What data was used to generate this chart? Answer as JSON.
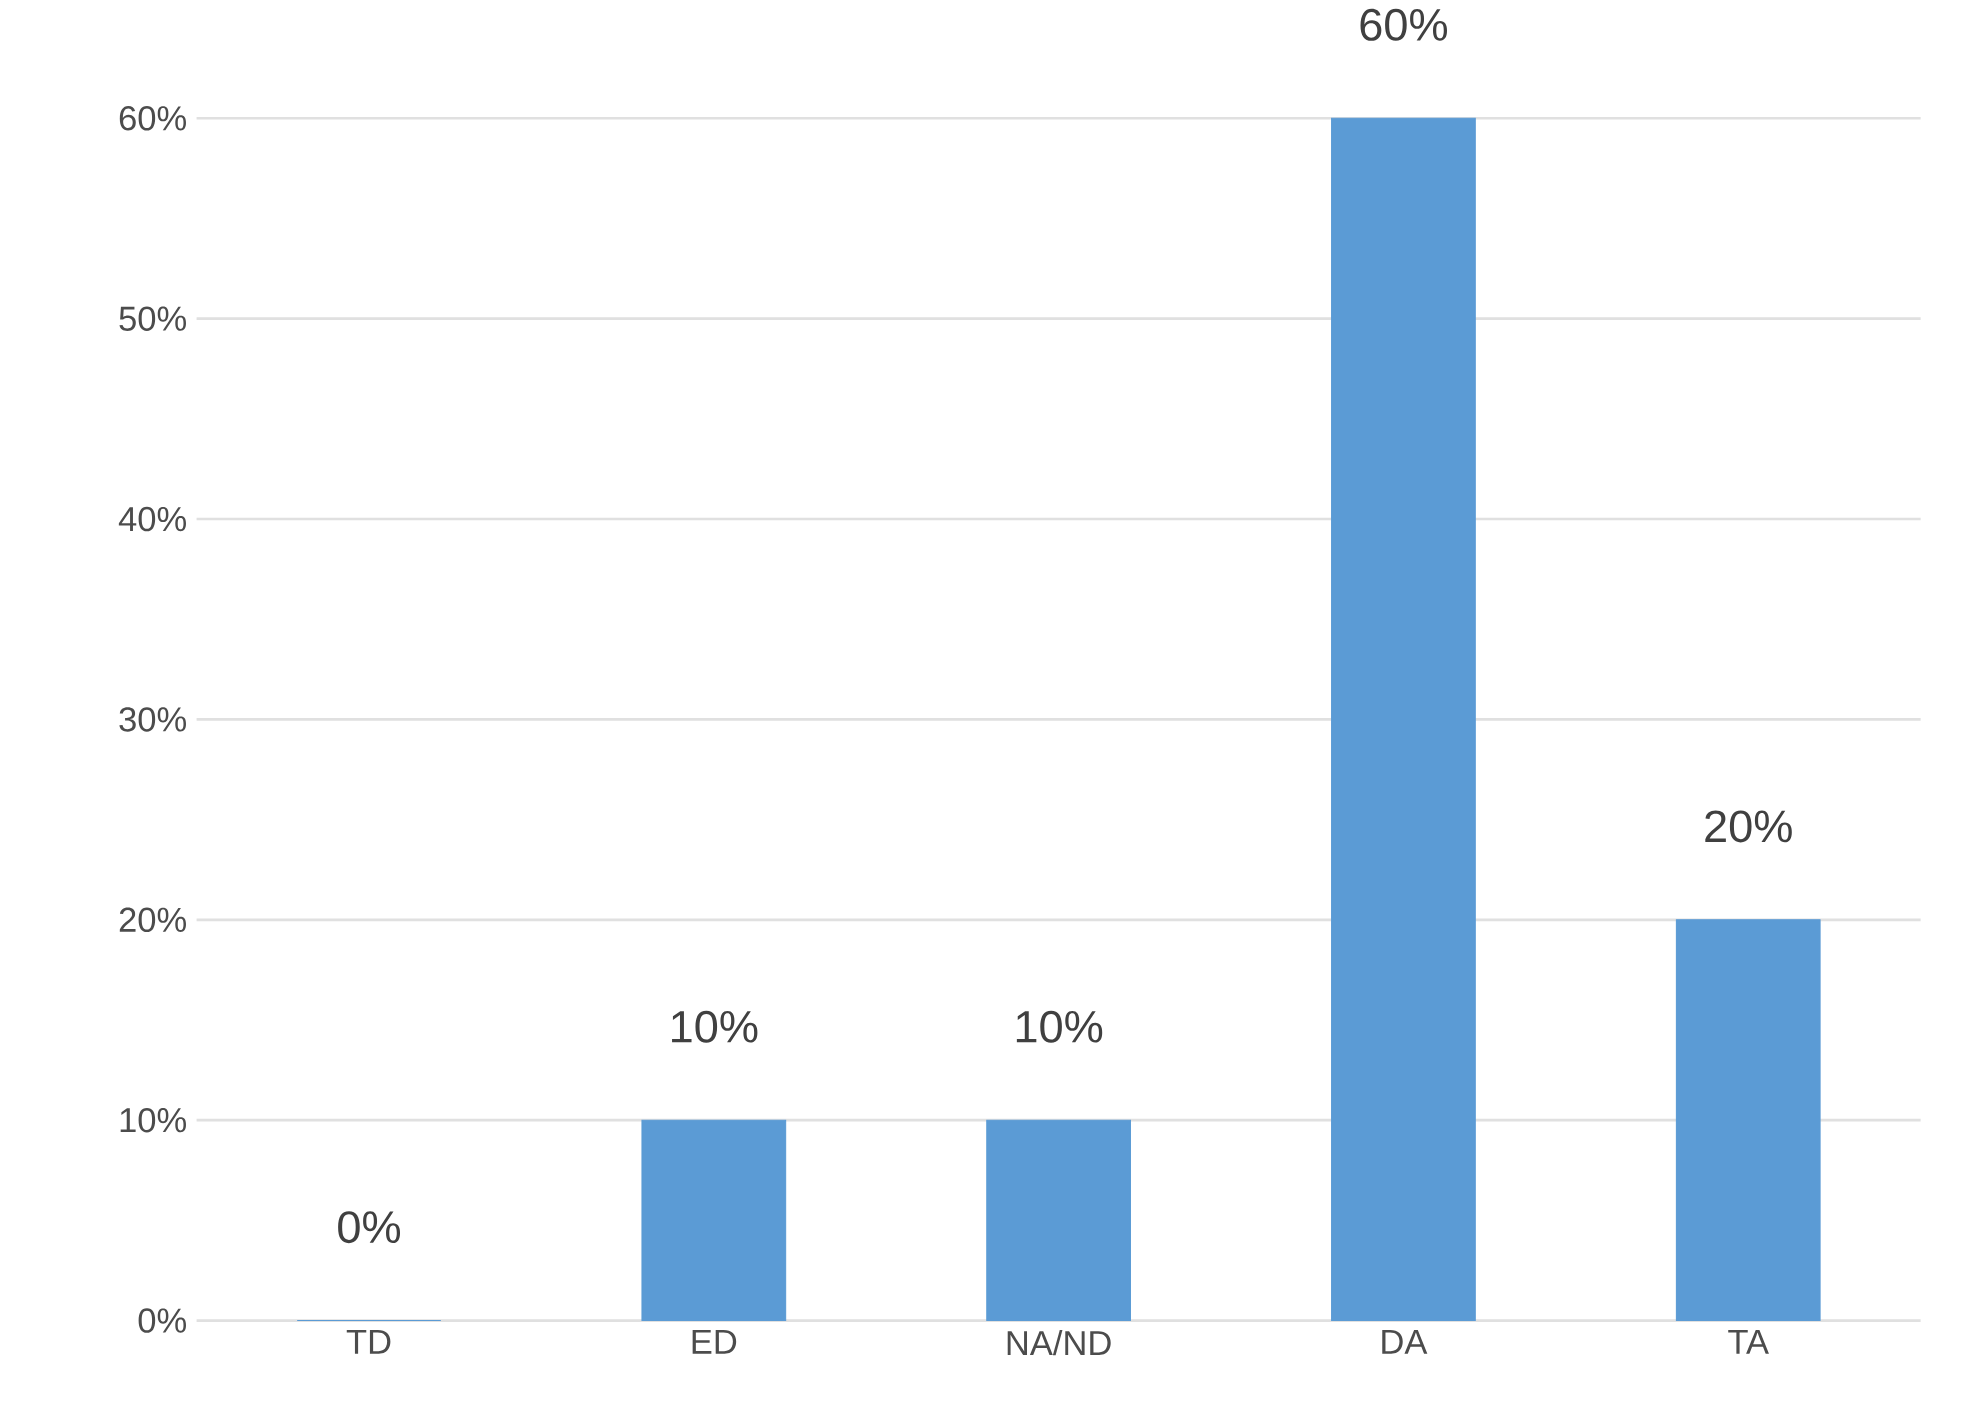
{
  "chart_data": {
    "type": "bar",
    "categories": [
      "TD",
      "ED",
      "NA/ND",
      "DA",
      "TA"
    ],
    "values": [
      0,
      10,
      10,
      60,
      20
    ],
    "value_labels": [
      "0%",
      "10%",
      "10%",
      "60%",
      "20%"
    ],
    "color": "#5b9bd5",
    "ylim": [
      0,
      60
    ],
    "yticks": [
      {
        "value": 0,
        "label": "0%"
      },
      {
        "value": 10,
        "label": "10%"
      },
      {
        "value": 20,
        "label": "20%"
      },
      {
        "value": 30,
        "label": "30%"
      },
      {
        "value": 40,
        "label": "40%"
      },
      {
        "value": 50,
        "label": "50%"
      },
      {
        "value": 60,
        "label": "60%"
      }
    ],
    "grid": "y"
  }
}
